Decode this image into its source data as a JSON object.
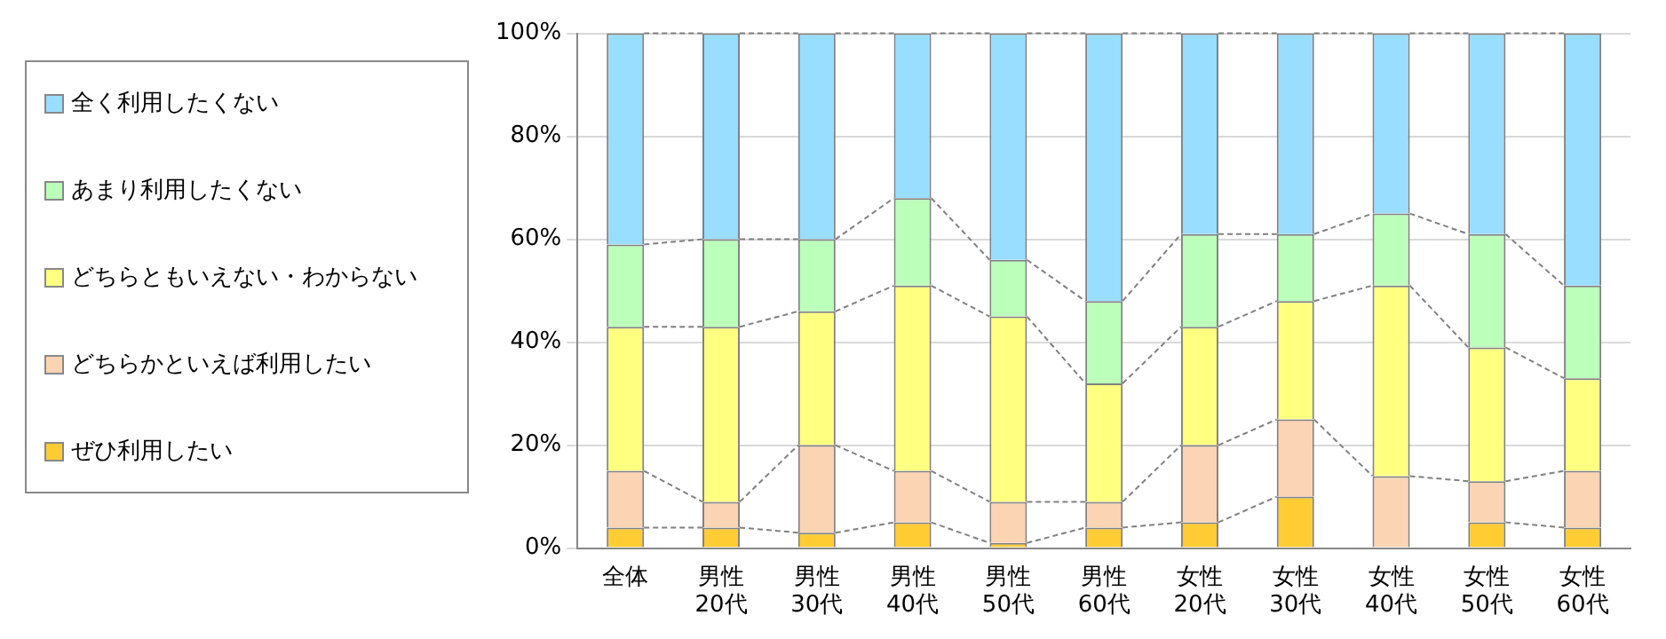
{
  "chart_data": {
    "type": "bar",
    "stacked": true,
    "categories": [
      "全体",
      "男性\n20代",
      "男性\n30代",
      "男性\n40代",
      "男性\n50代",
      "男性\n60代",
      "女性\n20代",
      "女性\n30代",
      "女性\n40代",
      "女性\n50代",
      "女性\n60代"
    ],
    "series": [
      {
        "name": "ぜひ利用したい",
        "color": "#ffcc33",
        "values": [
          4,
          4,
          3,
          5,
          1,
          4,
          5,
          10,
          0,
          5,
          4
        ]
      },
      {
        "name": "どちらかといえば利用したい",
        "color": "#fbd4b4",
        "values": [
          11,
          5,
          17,
          10,
          8,
          5,
          15,
          15,
          14,
          8,
          11
        ]
      },
      {
        "name": "どちらともいえない・わからない",
        "color": "#ffff80",
        "values": [
          28,
          34,
          26,
          36,
          36,
          23,
          23,
          23,
          37,
          26,
          18
        ]
      },
      {
        "name": "あまり利用したくない",
        "color": "#bbffbb",
        "values": [
          16,
          17,
          14,
          17,
          11,
          16,
          18,
          13,
          14,
          22,
          18
        ]
      },
      {
        "name": "全く利用したくない",
        "color": "#99ddff",
        "values": [
          41,
          40,
          40,
          32,
          44,
          52,
          39,
          39,
          35,
          39,
          49
        ]
      }
    ],
    "ylim": [
      0,
      100
    ],
    "yticks": [
      {
        "value": 0,
        "label": "0%"
      },
      {
        "value": 20,
        "label": "20%"
      },
      {
        "value": 40,
        "label": "40%"
      },
      {
        "value": 60,
        "label": "60%"
      },
      {
        "value": 80,
        "label": "80%"
      },
      {
        "value": 100,
        "label": "100%"
      }
    ],
    "grid": "y",
    "legend": "left"
  }
}
